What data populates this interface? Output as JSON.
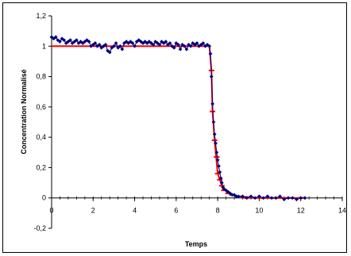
{
  "chart_data": {
    "type": "scatter",
    "title": "",
    "xlabel": "Temps",
    "ylabel": "Concentration Normalisé",
    "xlim": [
      0,
      14
    ],
    "ylim": [
      -0.2,
      1.2
    ],
    "x_ticks": [
      "0",
      "2",
      "4",
      "6",
      "8",
      "10",
      "12",
      "14"
    ],
    "y_ticks": [
      "-0,2",
      "0",
      "0,2",
      "0,4",
      "0,6",
      "0,8",
      "1",
      "1,2"
    ],
    "grid": false,
    "legend": "none",
    "series": [
      {
        "kind": "markers-with-line",
        "color": "#000080",
        "points": [
          [
            0.0,
            1.06
          ],
          [
            0.1,
            1.05
          ],
          [
            0.2,
            1.06
          ],
          [
            0.3,
            1.04
          ],
          [
            0.4,
            1.03
          ],
          [
            0.5,
            1.05
          ],
          [
            0.6,
            1.04
          ],
          [
            0.7,
            1.02
          ],
          [
            0.8,
            1.03
          ],
          [
            0.9,
            1.04
          ],
          [
            1.0,
            1.02
          ],
          [
            1.1,
            1.03
          ],
          [
            1.2,
            1.04
          ],
          [
            1.3,
            1.02
          ],
          [
            1.4,
            1.03
          ],
          [
            1.5,
            1.02
          ],
          [
            1.6,
            1.03
          ],
          [
            1.7,
            1.04
          ],
          [
            1.8,
            1.03
          ],
          [
            1.9,
            1.0
          ],
          [
            2.0,
            1.01
          ],
          [
            2.1,
            1.02
          ],
          [
            2.2,
            1.0
          ],
          [
            2.3,
            1.01
          ],
          [
            2.4,
            0.99
          ],
          [
            2.5,
            1.0
          ],
          [
            2.6,
            1.01
          ],
          [
            2.7,
            0.97
          ],
          [
            2.8,
            0.96
          ],
          [
            2.9,
            0.99
          ],
          [
            3.0,
            1.0
          ],
          [
            3.1,
            1.02
          ],
          [
            3.2,
            0.99
          ],
          [
            3.3,
            1.0
          ],
          [
            3.4,
            0.98
          ],
          [
            3.5,
            1.02
          ],
          [
            3.6,
            1.03
          ],
          [
            3.7,
            1.02
          ],
          [
            3.8,
            1.03
          ],
          [
            3.9,
            1.02
          ],
          [
            4.0,
            1.0
          ],
          [
            4.1,
            1.03
          ],
          [
            4.2,
            1.04
          ],
          [
            4.3,
            1.03
          ],
          [
            4.4,
            1.02
          ],
          [
            4.5,
            1.03
          ],
          [
            4.6,
            1.02
          ],
          [
            4.7,
            1.03
          ],
          [
            4.8,
            1.02
          ],
          [
            4.9,
            1.01
          ],
          [
            5.0,
            1.03
          ],
          [
            5.1,
            1.02
          ],
          [
            5.2,
            1.01
          ],
          [
            5.3,
            1.03
          ],
          [
            5.4,
            1.02
          ],
          [
            5.5,
            1.03
          ],
          [
            5.6,
            1.01
          ],
          [
            5.7,
            1.02
          ],
          [
            5.8,
            1.0
          ],
          [
            5.9,
            0.99
          ],
          [
            6.0,
            1.02
          ],
          [
            6.1,
            1.01
          ],
          [
            6.2,
            0.98
          ],
          [
            6.3,
            1.01
          ],
          [
            6.4,
            1.0
          ],
          [
            6.5,
            0.98
          ],
          [
            6.6,
            1.01
          ],
          [
            6.7,
            1.0
          ],
          [
            6.8,
            1.02
          ],
          [
            6.9,
            1.01
          ],
          [
            7.0,
            1.02
          ],
          [
            7.1,
            1.0
          ],
          [
            7.2,
            1.01
          ],
          [
            7.3,
            1.02
          ],
          [
            7.4,
            1.0
          ],
          [
            7.5,
            1.01
          ],
          [
            7.6,
            1.0
          ],
          [
            7.65,
            0.95
          ],
          [
            7.7,
            0.8
          ],
          [
            7.75,
            0.62
          ],
          [
            7.8,
            0.5
          ],
          [
            7.85,
            0.42
          ],
          [
            7.9,
            0.36
          ],
          [
            7.95,
            0.3
          ],
          [
            8.0,
            0.25
          ],
          [
            8.05,
            0.21
          ],
          [
            8.1,
            0.17
          ],
          [
            8.15,
            0.13
          ],
          [
            8.2,
            0.1
          ],
          [
            8.25,
            0.07
          ],
          [
            8.3,
            0.06
          ],
          [
            8.4,
            0.05
          ],
          [
            8.5,
            0.04
          ],
          [
            8.6,
            0.03
          ],
          [
            8.7,
            0.02
          ],
          [
            8.8,
            0.02
          ],
          [
            8.9,
            0.01
          ],
          [
            9.0,
            0.01
          ],
          [
            9.2,
            0.01
          ],
          [
            9.4,
            0.0
          ],
          [
            9.6,
            0.01
          ],
          [
            9.8,
            0.0
          ],
          [
            10.0,
            0.01
          ],
          [
            10.2,
            0.0
          ],
          [
            10.4,
            0.01
          ],
          [
            10.6,
            0.0
          ],
          [
            10.8,
            0.0
          ],
          [
            11.0,
            0.01
          ],
          [
            11.2,
            -0.01
          ],
          [
            11.4,
            0.0
          ],
          [
            11.6,
            0.0
          ],
          [
            11.8,
            -0.01
          ],
          [
            12.0,
            0.0
          ],
          [
            12.2,
            0.0
          ]
        ]
      },
      {
        "kind": "step-line-with-dash-markers",
        "color": "#ff0000",
        "line": [
          [
            0.0,
            1.0
          ],
          [
            7.6,
            1.0
          ],
          [
            7.7,
            0.84
          ],
          [
            7.75,
            0.57
          ],
          [
            7.85,
            0.38
          ],
          [
            8.0,
            0.16
          ],
          [
            8.2,
            0.08
          ],
          [
            8.5,
            0.03
          ],
          [
            9.0,
            0.01
          ],
          [
            10.0,
            0.0
          ],
          [
            12.2,
            0.0
          ]
        ],
        "markers": [
          [
            7.7,
            0.84
          ],
          [
            7.75,
            0.57
          ],
          [
            7.85,
            0.38
          ],
          [
            7.95,
            0.27
          ],
          [
            8.0,
            0.16
          ],
          [
            8.1,
            0.12
          ],
          [
            8.2,
            0.08
          ],
          [
            8.3,
            0.05
          ],
          [
            8.5,
            0.03
          ],
          [
            8.7,
            0.02
          ],
          [
            9.0,
            0.01
          ],
          [
            9.3,
            0.0
          ],
          [
            9.6,
            0.0
          ],
          [
            10.0,
            0.0
          ],
          [
            10.3,
            0.0
          ],
          [
            10.6,
            0.0
          ],
          [
            11.0,
            0.0
          ],
          [
            11.3,
            0.0
          ],
          [
            11.6,
            0.0
          ],
          [
            12.0,
            0.0
          ]
        ]
      }
    ]
  }
}
